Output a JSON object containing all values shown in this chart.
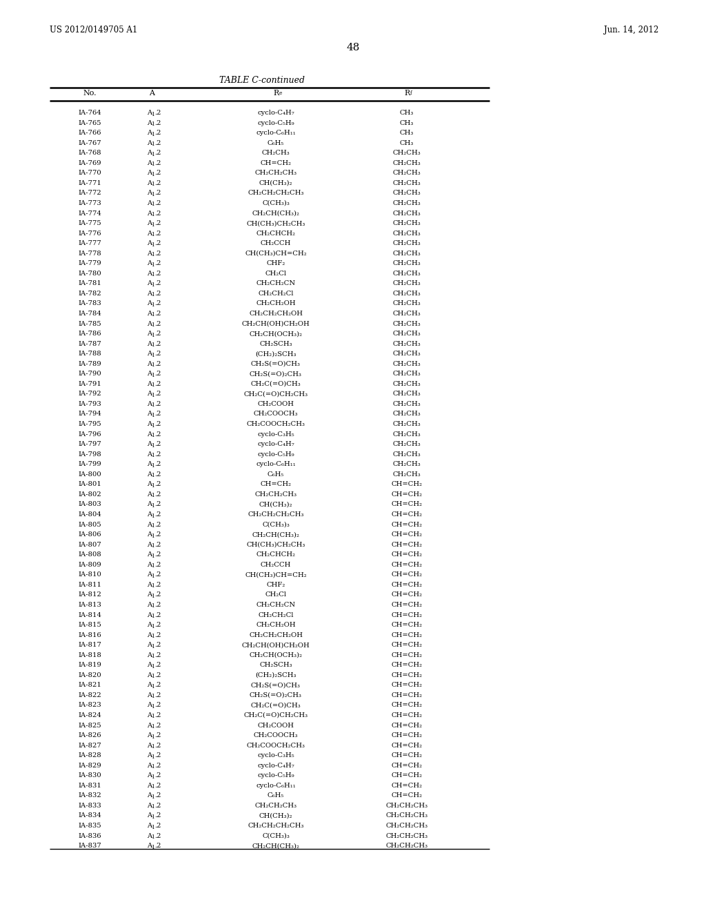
{
  "header_left": "US 2012/0149705 A1",
  "header_right": "Jun. 14, 2012",
  "page_number": "48",
  "table_title": "TABLE C-continued",
  "bg_color": "#ffffff",
  "text_color": "#000000",
  "rows": [
    [
      "IA-764",
      "cyclo-C₄H₇",
      "CH₃"
    ],
    [
      "IA-765",
      "cyclo-C₅H₉",
      "CH₃"
    ],
    [
      "IA-766",
      "cyclo-C₆H₁₁",
      "CH₃"
    ],
    [
      "IA-767",
      "C₆H₅",
      "CH₃"
    ],
    [
      "IA-768",
      "CH₂CH₃",
      "CH₂CH₃"
    ],
    [
      "IA-769",
      "CH=CH₂",
      "CH₂CH₃"
    ],
    [
      "IA-770",
      "CH₂CH₂CH₃",
      "CH₂CH₃"
    ],
    [
      "IA-771",
      "CH(CH₃)₂",
      "CH₂CH₃"
    ],
    [
      "IA-772",
      "CH₂CH₂CH₂CH₃",
      "CH₂CH₃"
    ],
    [
      "IA-773",
      "C(CH₃)₃",
      "CH₂CH₃"
    ],
    [
      "IA-774",
      "CH₂CH(CH₃)₂",
      "CH₂CH₃"
    ],
    [
      "IA-775",
      "CH(CH₃)CH₂CH₃",
      "CH₂CH₃"
    ],
    [
      "IA-776",
      "CH₂CHCH₂",
      "CH₂CH₃"
    ],
    [
      "IA-777",
      "CH₂CCH",
      "CH₂CH₃"
    ],
    [
      "IA-778",
      "CH(CH₃)CH=CH₂",
      "CH₂CH₃"
    ],
    [
      "IA-779",
      "CHF₂",
      "CH₂CH₃"
    ],
    [
      "IA-780",
      "CH₂Cl",
      "CH₂CH₃"
    ],
    [
      "IA-781",
      "CH₂CH₂CN",
      "CH₂CH₃"
    ],
    [
      "IA-782",
      "CH₂CH₂Cl",
      "CH₂CH₃"
    ],
    [
      "IA-783",
      "CH₂CH₂OH",
      "CH₂CH₃"
    ],
    [
      "IA-784",
      "CH₂CH₂CH₂OH",
      "CH₂CH₃"
    ],
    [
      "IA-785",
      "CH₂CH(OH)CH₂OH",
      "CH₂CH₃"
    ],
    [
      "IA-786",
      "CH₂CH(OCH₃)₂",
      "CH₂CH₃"
    ],
    [
      "IA-787",
      "CH₂SCH₃",
      "CH₂CH₃"
    ],
    [
      "IA-788",
      "(CH₂)₂SCH₃",
      "CH₂CH₃"
    ],
    [
      "IA-789",
      "CH₂S(=O)CH₃",
      "CH₂CH₃"
    ],
    [
      "IA-790",
      "CH₂S(=O)₂CH₃",
      "CH₂CH₃"
    ],
    [
      "IA-791",
      "CH₂C(=O)CH₃",
      "CH₂CH₃"
    ],
    [
      "IA-792",
      "CH₂C(=O)CH₂CH₃",
      "CH₂CH₃"
    ],
    [
      "IA-793",
      "CH₂COOH",
      "CH₂CH₃"
    ],
    [
      "IA-794",
      "CH₂COOCH₃",
      "CH₂CH₃"
    ],
    [
      "IA-795",
      "CH₂COOCH₂CH₃",
      "CH₂CH₃"
    ],
    [
      "IA-796",
      "cyclo-C₃H₅",
      "CH₂CH₃"
    ],
    [
      "IA-797",
      "cyclo-C₄H₇",
      "CH₂CH₃"
    ],
    [
      "IA-798",
      "cyclo-C₅H₉",
      "CH₂CH₃"
    ],
    [
      "IA-799",
      "cyclo-C₆H₁₁",
      "CH₂CH₃"
    ],
    [
      "IA-800",
      "C₆H₅",
      "CH₂CH₃"
    ],
    [
      "IA-801",
      "CH=CH₂",
      "CH=CH₂"
    ],
    [
      "IA-802",
      "CH₂CH₂CH₃",
      "CH=CH₂"
    ],
    [
      "IA-803",
      "CH(CH₃)₂",
      "CH=CH₂"
    ],
    [
      "IA-804",
      "CH₂CH₂CH₂CH₃",
      "CH=CH₂"
    ],
    [
      "IA-805",
      "C(CH₃)₃",
      "CH=CH₂"
    ],
    [
      "IA-806",
      "CH₂CH(CH₃)₂",
      "CH=CH₂"
    ],
    [
      "IA-807",
      "CH(CH₃)CH₂CH₃",
      "CH=CH₂"
    ],
    [
      "IA-808",
      "CH₂CHCH₂",
      "CH=CH₂"
    ],
    [
      "IA-809",
      "CH₂CCH",
      "CH=CH₂"
    ],
    [
      "IA-810",
      "CH(CH₃)CH=CH₂",
      "CH=CH₂"
    ],
    [
      "IA-811",
      "CHF₂",
      "CH=CH₂"
    ],
    [
      "IA-812",
      "CH₂Cl",
      "CH=CH₂"
    ],
    [
      "IA-813",
      "CH₂CH₂CN",
      "CH=CH₂"
    ],
    [
      "IA-814",
      "CH₂CH₂Cl",
      "CH=CH₂"
    ],
    [
      "IA-815",
      "CH₂CH₂OH",
      "CH=CH₂"
    ],
    [
      "IA-816",
      "CH₂CH₂CH₂OH",
      "CH=CH₂"
    ],
    [
      "IA-817",
      "CH₂CH(OH)CH₂OH",
      "CH=CH₂"
    ],
    [
      "IA-818",
      "CH₂CH(OCH₃)₂",
      "CH=CH₂"
    ],
    [
      "IA-819",
      "CH₂SCH₃",
      "CH=CH₂"
    ],
    [
      "IA-820",
      "(CH₂)₂SCH₃",
      "CH=CH₂"
    ],
    [
      "IA-821",
      "CH₂S(=O)CH₃",
      "CH=CH₂"
    ],
    [
      "IA-822",
      "CH₂S(=O)₂CH₃",
      "CH=CH₂"
    ],
    [
      "IA-823",
      "CH₂C(=O)CH₃",
      "CH=CH₂"
    ],
    [
      "IA-824",
      "CH₂C(=O)CH₂CH₃",
      "CH=CH₂"
    ],
    [
      "IA-825",
      "CH₂COOH",
      "CH=CH₂"
    ],
    [
      "IA-826",
      "CH₂COOCH₃",
      "CH=CH₂"
    ],
    [
      "IA-827",
      "CH₂COOCH₂CH₃",
      "CH=CH₂"
    ],
    [
      "IA-828",
      "cyclo-C₃H₅",
      "CH=CH₂"
    ],
    [
      "IA-829",
      "cyclo-C₄H₇",
      "CH=CH₂"
    ],
    [
      "IA-830",
      "cyclo-C₅H₉",
      "CH=CH₂"
    ],
    [
      "IA-831",
      "cyclo-C₆H₁₁",
      "CH=CH₂"
    ],
    [
      "IA-832",
      "C₆H₅",
      "CH=CH₂"
    ],
    [
      "IA-833",
      "CH₂CH₂CH₃",
      "CH₂CH₂CH₃"
    ],
    [
      "IA-834",
      "CH(CH₃)₂",
      "CH₂CH₂CH₃"
    ],
    [
      "IA-835",
      "CH₂CH₂CH₂CH₃",
      "CH₂CH₂CH₃"
    ],
    [
      "IA-836",
      "C(CH₃)₃",
      "CH₂CH₂CH₃"
    ],
    [
      "IA-837",
      "CH₂CH(CH₃)₂",
      "CH₂CH₂CH₃"
    ]
  ]
}
